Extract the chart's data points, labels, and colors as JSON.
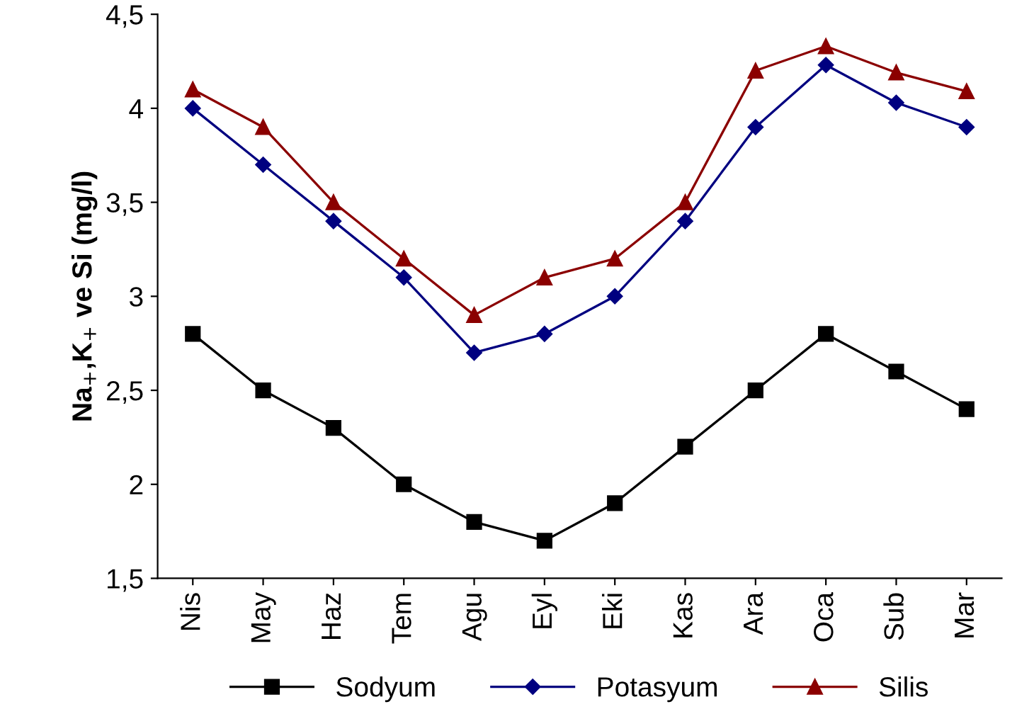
{
  "chart_data": {
    "type": "line",
    "ylabel": "Na$_{+}$,K$_{+}$ ve Si (mg/l)",
    "categories": [
      "Nis",
      "May",
      "Haz",
      "Tem",
      "Agu",
      "Eyl",
      "Eki",
      "Kas",
      "Ara",
      "Oca",
      "Sub",
      "Mar"
    ],
    "series": [
      {
        "name": "Sodyum",
        "color": "#000000",
        "marker": "square",
        "values": [
          2.8,
          2.5,
          2.3,
          2.0,
          1.8,
          1.7,
          1.9,
          2.2,
          2.5,
          2.8,
          2.6,
          2.4
        ]
      },
      {
        "name": "Potasyum",
        "color": "#000080",
        "marker": "diamond",
        "values": [
          4.0,
          3.7,
          3.4,
          3.1,
          2.7,
          2.8,
          3.0,
          3.4,
          3.9,
          4.23,
          4.03,
          3.9
        ]
      },
      {
        "name": "Silis",
        "color": "#8b0000",
        "marker": "triangle",
        "values": [
          4.1,
          3.9,
          3.5,
          3.2,
          2.9,
          3.1,
          3.2,
          3.5,
          4.2,
          4.33,
          4.19,
          4.09
        ]
      }
    ],
    "ylim": [
      1.5,
      4.5
    ],
    "yticks": [
      {
        "value": 1.5,
        "label": "1,5"
      },
      2,
      {
        "value": 2.5,
        "label": "2,5"
      },
      3,
      {
        "value": 3.5,
        "label": "3,5"
      },
      4,
      {
        "value": 4.5,
        "label": "4,5"
      }
    ],
    "grid": false,
    "legend": "bottom",
    "line_style": "solid"
  }
}
